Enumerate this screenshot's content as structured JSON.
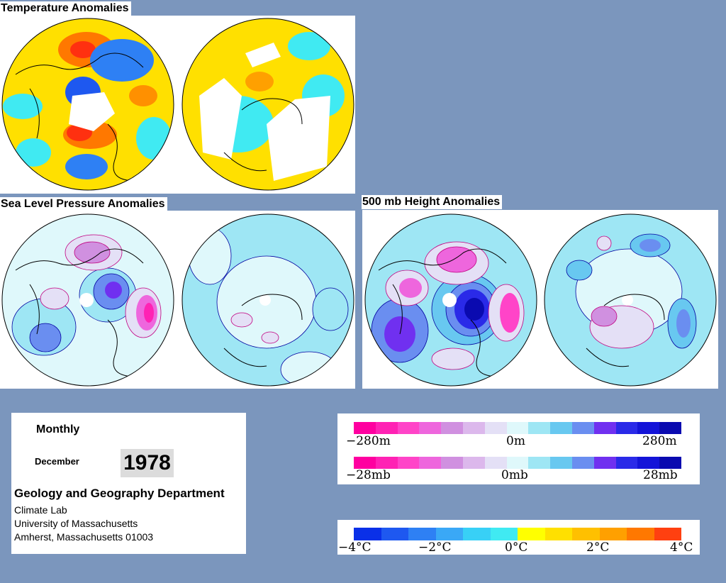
{
  "titles": {
    "temperature": "Temperature Anomalies",
    "slp": "Sea Level Pressure Anomalies",
    "height": "500 mb Height Anomalies"
  },
  "info": {
    "period": "Monthly",
    "month": "December",
    "year": "1978",
    "department": "Geology and Geography Department",
    "lab": "Climate Lab",
    "university": "University of Massachusetts",
    "address": "Amherst, Massachusetts 01003"
  },
  "legends": {
    "height": {
      "min": "−280m",
      "mid": "0m",
      "max": "280m",
      "colors": [
        "#ff00a0",
        "#ff22b4",
        "#ff44c8",
        "#ee66dd",
        "#d090e0",
        "#dcb8ec",
        "#e4e0f6",
        "#dff8fb",
        "#9ee6f4",
        "#68c8f0",
        "#6a8ef0",
        "#7030f0",
        "#2a2ae8",
        "#1414d8",
        "#0a0ab0"
      ]
    },
    "slp": {
      "min": "−28mb",
      "mid": "0mb",
      "max": "28mb",
      "colors": [
        "#ff00a0",
        "#ff22b4",
        "#ff44c8",
        "#ee66dd",
        "#d090e0",
        "#dcb8ec",
        "#e4e0f6",
        "#dff8fb",
        "#9ee6f4",
        "#68c8f0",
        "#6a8ef0",
        "#7030f0",
        "#2a2ae8",
        "#1414d8",
        "#0a0ab0"
      ]
    },
    "temperature": {
      "labels": [
        "−4°C",
        "−2°C",
        "0°C",
        "2°C",
        "4°C"
      ],
      "colors": [
        "#0a30e8",
        "#1e58f0",
        "#2e80f4",
        "#3aa8f6",
        "#38d0f6",
        "#40eaf2",
        "#ffff00",
        "#ffe000",
        "#ffc000",
        "#ffa000",
        "#ff7800",
        "#ff4010"
      ]
    }
  }
}
